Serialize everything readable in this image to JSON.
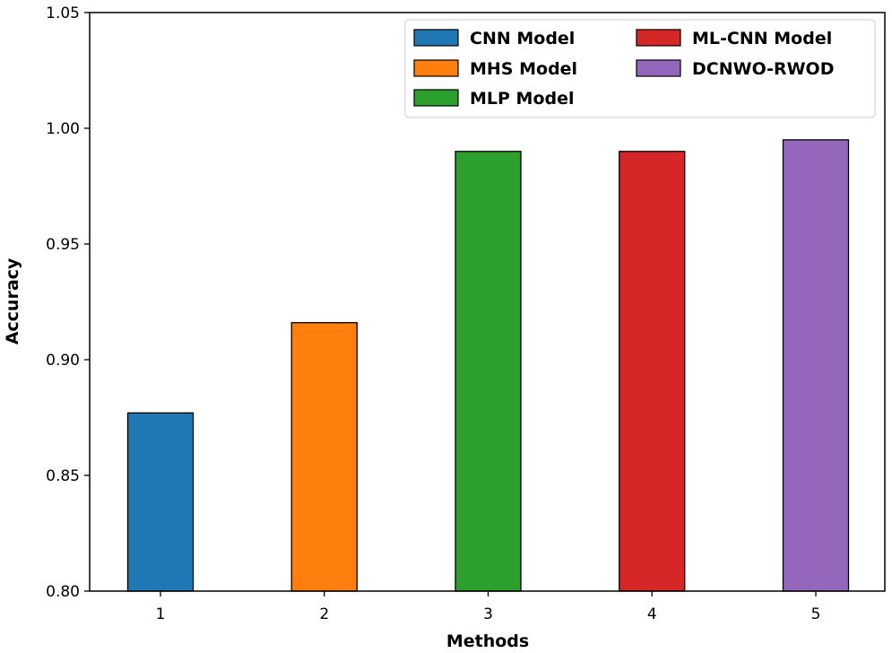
{
  "chart_data": {
    "type": "bar",
    "categories": [
      "1",
      "2",
      "3",
      "4",
      "5"
    ],
    "values": [
      0.877,
      0.916,
      0.99,
      0.99,
      0.995
    ],
    "series": [
      {
        "name": "CNN Model",
        "category": "1",
        "value": 0.877,
        "color": "#1f77b4"
      },
      {
        "name": "MHS Model",
        "category": "2",
        "value": 0.916,
        "color": "#ff7f0e"
      },
      {
        "name": "MLP Model",
        "category": "3",
        "value": 0.99,
        "color": "#2ca02c"
      },
      {
        "name": "ML-CNN Model",
        "category": "4",
        "value": 0.99,
        "color": "#d62728"
      },
      {
        "name": "DCNWO-RWOD",
        "category": "5",
        "value": 0.995,
        "color": "#9467bd"
      }
    ],
    "title": "",
    "xlabel": "Methods",
    "ylabel": "Accuracy",
    "ylim": [
      0.8,
      1.05
    ],
    "yticks": [
      "0.80",
      "0.85",
      "0.90",
      "0.95",
      "1.00",
      "1.05"
    ],
    "grid": false,
    "legend_position": "top-right"
  }
}
